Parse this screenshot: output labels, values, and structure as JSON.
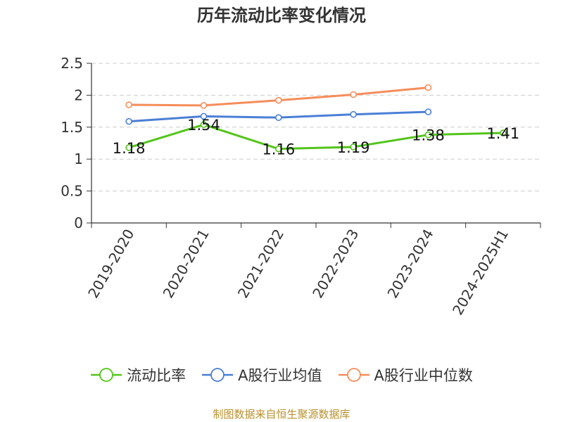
{
  "title": "历年流动比率变化情况",
  "source": "制图数据来自恒生聚源数据库",
  "chart_data": {
    "type": "line",
    "title": "历年流动比率变化情况",
    "xlabel": "",
    "ylabel": "",
    "ylim": [
      0,
      2.5
    ],
    "yticks": [
      "0",
      "0.5",
      "1",
      "1.5",
      "2",
      "2.5"
    ],
    "grid": true,
    "legend_position": "bottom",
    "categories": [
      "2019-2020",
      "2020-2021",
      "2021-2022",
      "2022-2023",
      "2023-2024",
      "2024-2025H1"
    ],
    "series": [
      {
        "name": "流动比率",
        "color": "#52c41a",
        "values": [
          1.18,
          1.54,
          1.16,
          1.19,
          1.38,
          1.41
        ],
        "labels": [
          "1.18",
          "1.54",
          "1.16",
          "1.19",
          "1.38",
          "1.41"
        ]
      },
      {
        "name": "A股行业均值",
        "color": "#4a7fd6",
        "values": [
          1.59,
          1.67,
          1.65,
          1.7,
          1.74,
          null
        ]
      },
      {
        "name": "A股行业中位数",
        "color": "#f58d5a",
        "values": [
          1.85,
          1.84,
          1.92,
          2.01,
          2.12,
          null
        ]
      }
    ]
  }
}
